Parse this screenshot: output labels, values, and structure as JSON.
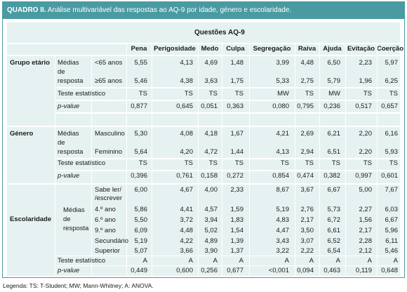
{
  "title_bold": "QUADRO II.",
  "title_rest": " Análise multivariável das respostas ao AQ-9 por idade, género e escolaridade.",
  "header_group": "Questões AQ-9",
  "columns": [
    "Pena",
    "Perigosidade",
    "Medo",
    "Culpa",
    "Segregação",
    "Raiva",
    "Ajuda",
    "Evitação",
    "Coerção"
  ],
  "groups": {
    "age": "Grupo etário",
    "gender": "Género",
    "education": "Escolaridade"
  },
  "labels": {
    "medias": "Médias",
    "de": "de",
    "resposta": "resposta",
    "teste": "Teste estatístico",
    "pvalue": "p-value"
  },
  "rows": {
    "age_lt65": {
      "label": "<65 anos",
      "values": [
        "5,55",
        "4,13",
        "4,69",
        "1,48",
        "3,99",
        "4,48",
        "6,50",
        "2,23",
        "5,97"
      ]
    },
    "age_ge65": {
      "label": "≥65 anos",
      "values": [
        "5,46",
        "4,38",
        "3,63",
        "1,75",
        "5,33",
        "2,75",
        "5,79",
        "1,96",
        "6,25"
      ]
    },
    "age_test": {
      "values": [
        "TS",
        "TS",
        "TS",
        "TS",
        "MW",
        "TS",
        "MW",
        "TS",
        "TS"
      ]
    },
    "age_p": {
      "values": [
        "0,877",
        "0,645",
        "0,051",
        "0,363",
        "0,080",
        "0,795",
        "0,236",
        "0,517",
        "0,657"
      ]
    },
    "g_m": {
      "label": "Masculino",
      "values": [
        "5,30",
        "4,08",
        "4,18",
        "1,67",
        "4,21",
        "2,69",
        "6,21",
        "2,20",
        "6,16"
      ]
    },
    "g_f": {
      "label": "Feminino",
      "values": [
        "5,64",
        "4,20",
        "4,72",
        "1,44",
        "4,13",
        "2,94",
        "6,51",
        "2,20",
        "5,93"
      ]
    },
    "g_test": {
      "values": [
        "TS",
        "TS",
        "TS",
        "TS",
        "TS",
        "TS",
        "TS",
        "TS",
        "TS"
      ]
    },
    "g_p": {
      "values": [
        "0,396",
        "0,761",
        "0,158",
        "0,272",
        "0,854",
        "0,474",
        "0,382",
        "0,997",
        "0,601"
      ]
    },
    "e_1": {
      "label1": "Sabe ler/",
      "label2": "/escrever",
      "values": [
        "6,00",
        "4,67",
        "4,00",
        "2,33",
        "8,67",
        "3,67",
        "6,67",
        "5,00",
        "7,67"
      ]
    },
    "e_2": {
      "label": "4.º ano",
      "values": [
        "5,86",
        "4,41",
        "4,57",
        "1,59",
        "5,19",
        "2,76",
        "5,73",
        "2,27",
        "6,03"
      ]
    },
    "e_3": {
      "label": "6.º ano",
      "values": [
        "5,50",
        "3,72",
        "3,94",
        "1,83",
        "4,83",
        "2,17",
        "6,72",
        "1,56",
        "6,67"
      ]
    },
    "e_4": {
      "label": "9.º ano",
      "values": [
        "6,09",
        "4,48",
        "5,02",
        "1,54",
        "4,47",
        "3,50",
        "6,61",
        "2,17",
        "5,96"
      ]
    },
    "e_5": {
      "label": "Secundário",
      "values": [
        "5,19",
        "4,22",
        "4,89",
        "1,39",
        "3,43",
        "3,07",
        "6,52",
        "2,28",
        "6,11"
      ]
    },
    "e_6": {
      "label": "Superior",
      "values": [
        "5,07",
        "3,66",
        "3,90",
        "1,37",
        "3,22",
        "2,22",
        "6,54",
        "2,12",
        "5,46"
      ]
    },
    "e_test": {
      "values": [
        "A",
        "A",
        "A",
        "A",
        "A",
        "A",
        "A",
        "A",
        "A"
      ]
    },
    "e_p": {
      "values": [
        "0,449",
        "0,600",
        "0,256",
        "0,677",
        "<0,001",
        "0,094",
        "0,463",
        "0,119",
        "0,648"
      ]
    }
  },
  "legend": "Legenda: TS: T-Student; MW; Mann-Whitney; A: ANOVA.",
  "colors": {
    "frame": "#4a9aa2",
    "table_bg": "#e6f2f1"
  }
}
